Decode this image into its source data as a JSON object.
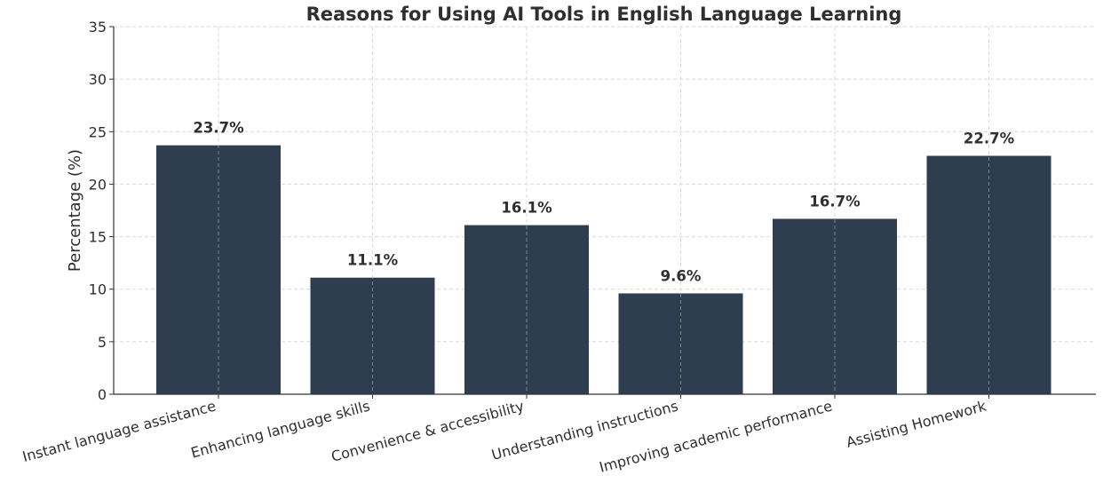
{
  "chart_data": {
    "type": "bar",
    "title": "Reasons for Using AI Tools in English Language Learning",
    "xlabel": "",
    "ylabel": "Percentage (%)",
    "ylim": [
      0,
      35
    ],
    "yticks": [
      0,
      5,
      10,
      15,
      20,
      25,
      30,
      35
    ],
    "grid": true,
    "categories": [
      "Instant language assistance",
      "Enhancing language skills",
      "Convenience & accessibility",
      "Understanding instructions",
      "Improving academic performance",
      "Assisting Homework"
    ],
    "values": [
      23.7,
      11.1,
      16.1,
      9.6,
      16.7,
      22.7
    ],
    "data_labels": [
      "23.7%",
      "11.1%",
      "16.1%",
      "9.6%",
      "16.7%",
      "22.7%"
    ],
    "bar_color": "#2e3e50"
  }
}
